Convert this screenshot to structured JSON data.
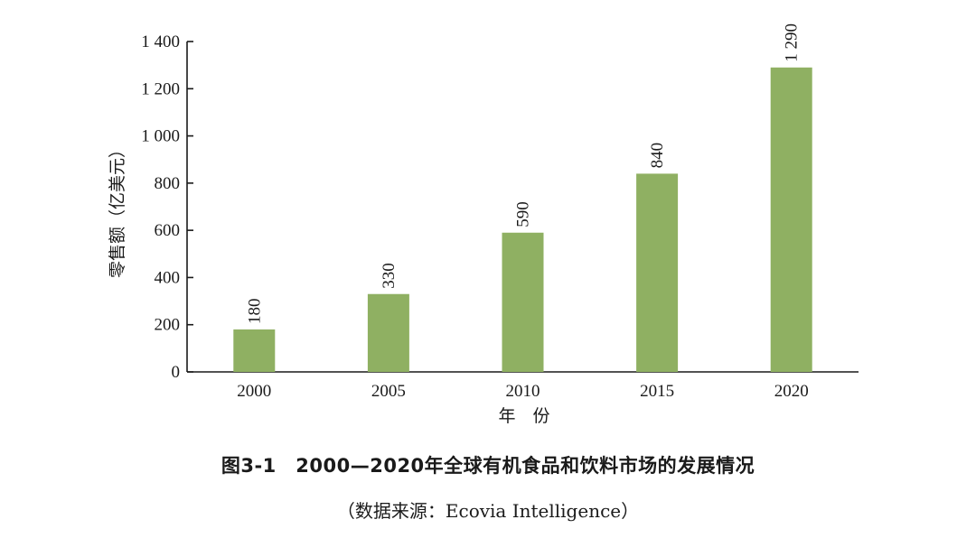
{
  "chart_data": {
    "type": "bar",
    "categories": [
      "2000",
      "2005",
      "2010",
      "2015",
      "2020"
    ],
    "values": [
      180,
      330,
      590,
      840,
      1290
    ],
    "data_labels": [
      "180",
      "330",
      "590",
      "840",
      "1 290"
    ],
    "xlabel": "年　份",
    "ylabel": "零售额（亿美元）",
    "ylim": [
      0,
      1400
    ],
    "yticks": [
      0,
      200,
      400,
      600,
      800,
      1000,
      1200,
      1400
    ],
    "ytick_labels": [
      "0",
      "200",
      "400",
      "600",
      "800",
      "1 000",
      "1 200",
      "1 400"
    ],
    "grid": false,
    "bar_color": "#8fb062",
    "axis_color": "#1a1a1a"
  },
  "figure": {
    "title": "图3-1　2000—2020年全球有机食品和饮料市场的发展情况",
    "source": "（数据来源：Ecovia Intelligence）"
  }
}
